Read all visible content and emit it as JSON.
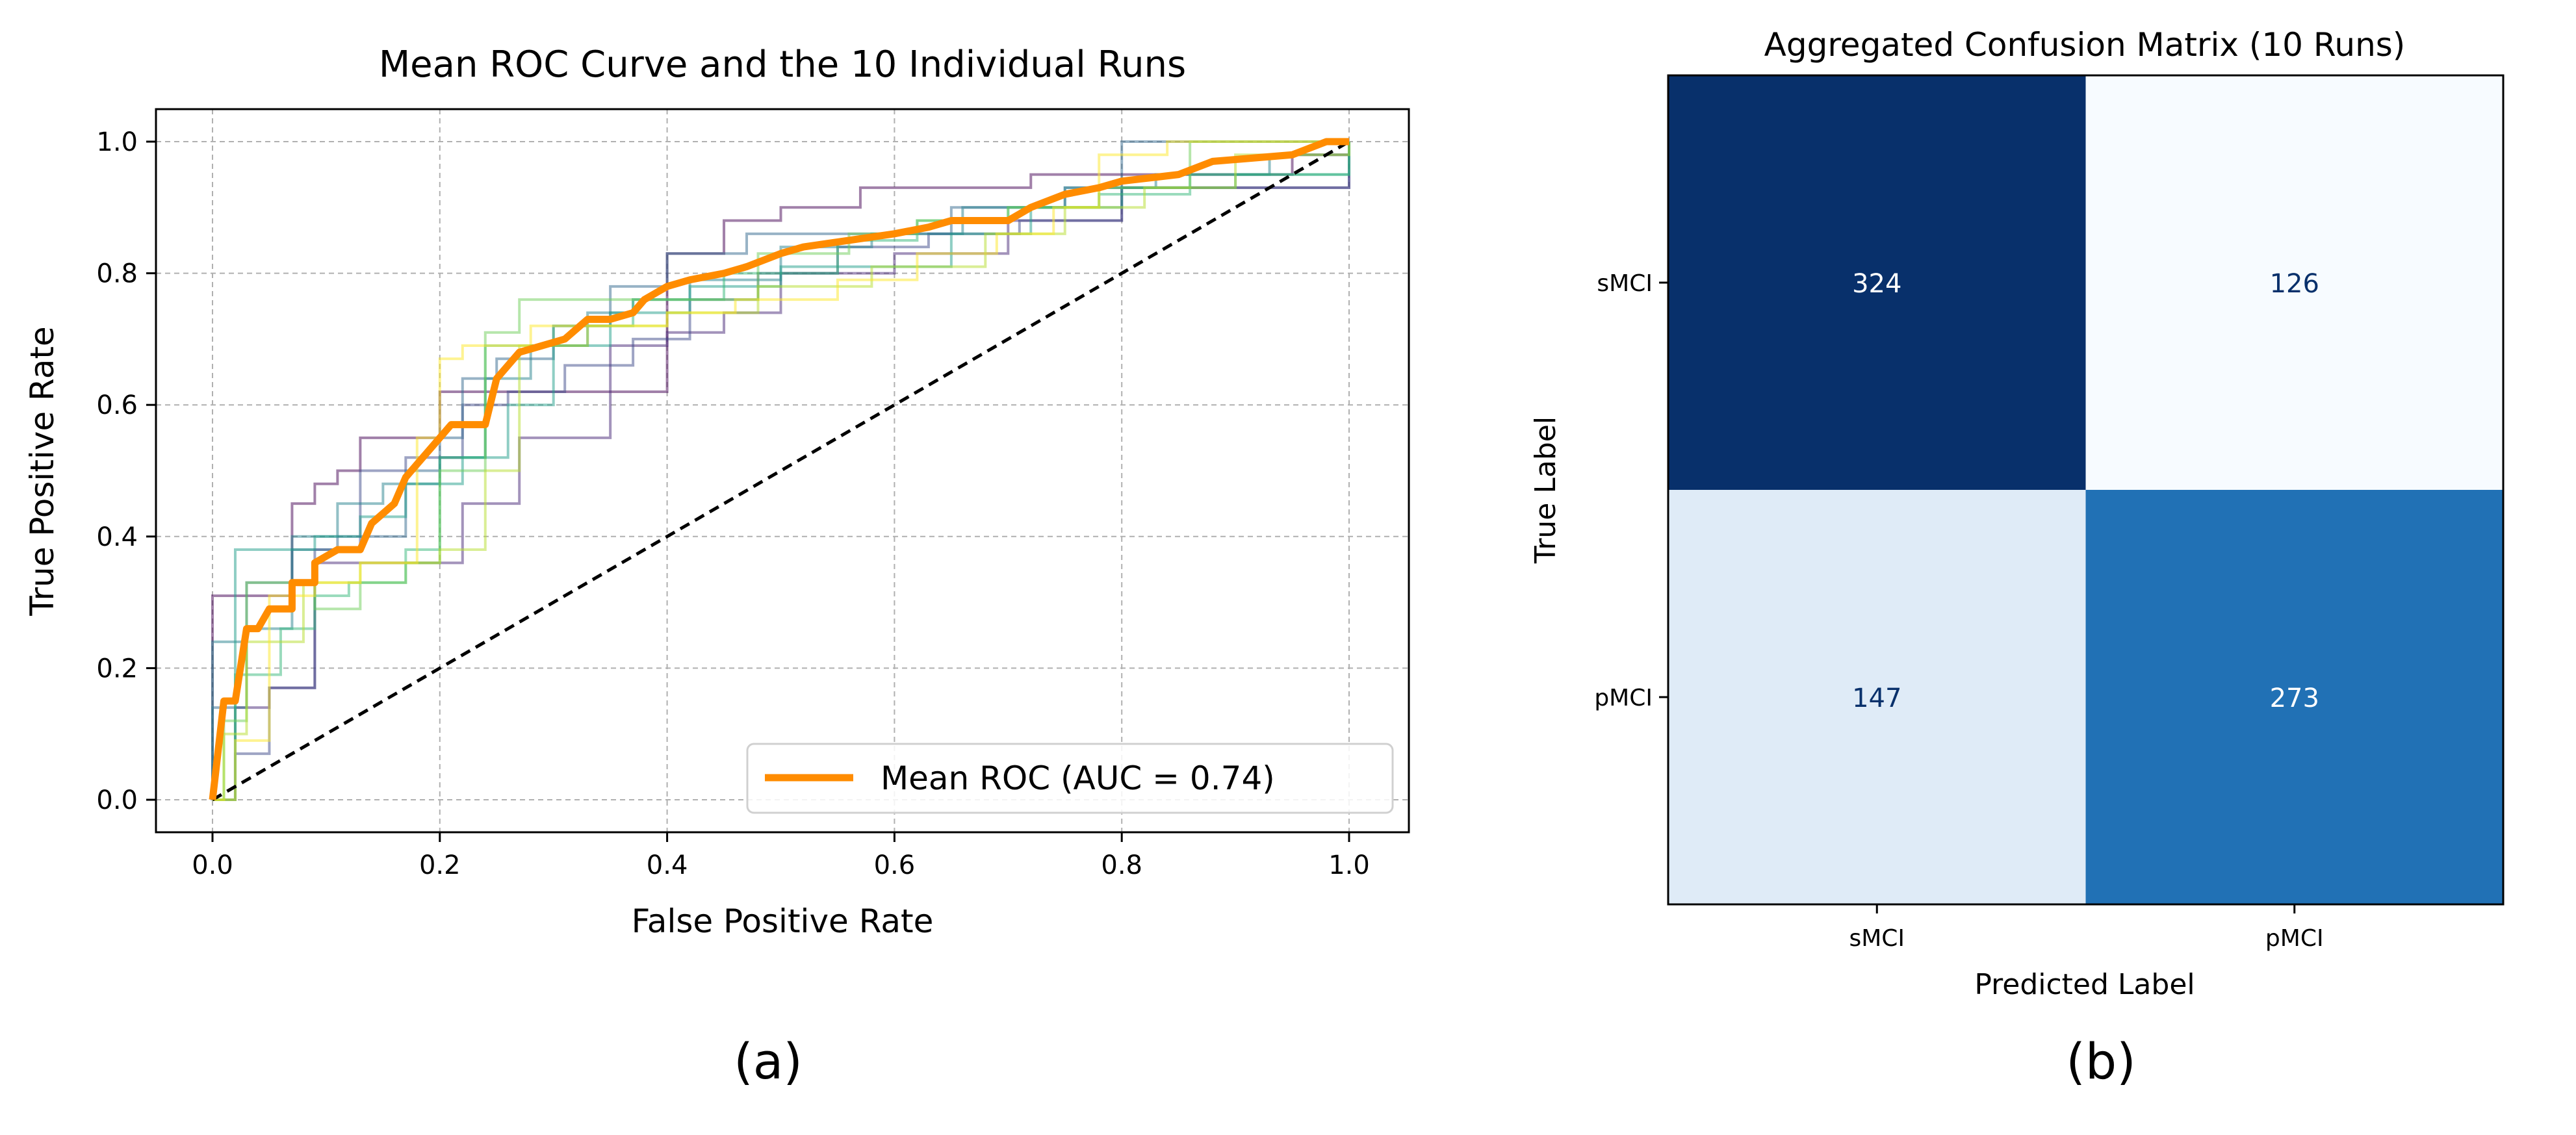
{
  "chart_data": [
    {
      "type": "line",
      "title": "Mean ROC Curve and the 10 Individual Runs",
      "xlabel": "False Positive Rate",
      "ylabel": "True Positive Rate",
      "xlim": [
        -0.05,
        1.05
      ],
      "ylim": [
        -0.05,
        1.05
      ],
      "xticks": [
        "0.0",
        "0.2",
        "0.4",
        "0.6",
        "0.8",
        "1.0"
      ],
      "yticks": [
        "0.0",
        "0.2",
        "0.4",
        "0.6",
        "0.8",
        "1.0"
      ],
      "grid": true,
      "legend_position": "lower-right",
      "panel_label": "(a)",
      "mean_series": {
        "name": "Mean ROC (AUC = 0.74)",
        "color": "#ff8c00",
        "x": [
          0,
          0.01,
          0.02,
          0.03,
          0.04,
          0.05,
          0.07,
          0.07,
          0.09,
          0.09,
          0.11,
          0.13,
          0.14,
          0.16,
          0.17,
          0.19,
          0.21,
          0.24,
          0.25,
          0.27,
          0.29,
          0.31,
          0.33,
          0.35,
          0.37,
          0.38,
          0.4,
          0.42,
          0.45,
          0.47,
          0.5,
          0.52,
          0.56,
          0.6,
          0.63,
          0.65,
          0.7,
          0.72,
          0.75,
          0.78,
          0.8,
          0.85,
          0.88,
          0.95,
          0.98,
          1.0
        ],
        "y": [
          0,
          0.15,
          0.15,
          0.26,
          0.26,
          0.29,
          0.29,
          0.33,
          0.33,
          0.36,
          0.38,
          0.38,
          0.42,
          0.45,
          0.49,
          0.53,
          0.57,
          0.57,
          0.64,
          0.68,
          0.69,
          0.7,
          0.73,
          0.73,
          0.74,
          0.76,
          0.78,
          0.79,
          0.8,
          0.81,
          0.83,
          0.84,
          0.85,
          0.86,
          0.87,
          0.88,
          0.88,
          0.9,
          0.92,
          0.93,
          0.94,
          0.95,
          0.97,
          0.98,
          1.0,
          1.0
        ]
      },
      "run_series": [
        {
          "color": "#440154",
          "x": [
            0,
            0,
            0.02,
            0.07,
            0.09,
            0.11,
            0.13,
            0.18,
            0.2,
            0.4,
            0.45,
            0.5,
            0.57,
            0.65,
            0.72,
            0.8,
            0.88,
            0.95,
            1.0
          ],
          "y": [
            0,
            0.31,
            0.31,
            0.45,
            0.48,
            0.5,
            0.55,
            0.55,
            0.62,
            0.83,
            0.88,
            0.9,
            0.93,
            0.93,
            0.95,
            0.95,
            0.95,
            0.98,
            1.0
          ]
        },
        {
          "color": "#482878",
          "x": [
            0,
            0.02,
            0.05,
            0.09,
            0.2,
            0.22,
            0.27,
            0.35,
            0.4,
            0.45,
            0.5,
            0.6,
            0.7,
            0.8,
            0.9,
            1.0
          ],
          "y": [
            0,
            0.14,
            0.17,
            0.36,
            0.36,
            0.45,
            0.55,
            0.69,
            0.71,
            0.74,
            0.8,
            0.83,
            0.88,
            0.93,
            0.93,
            1.0
          ]
        },
        {
          "color": "#3e4989",
          "x": [
            0,
            0.02,
            0.05,
            0.09,
            0.13,
            0.17,
            0.22,
            0.26,
            0.31,
            0.37,
            0.42,
            0.48,
            0.55,
            0.63,
            0.71,
            0.8,
            0.95,
            1.0
          ],
          "y": [
            0,
            0.07,
            0.17,
            0.38,
            0.5,
            0.52,
            0.6,
            0.62,
            0.66,
            0.7,
            0.76,
            0.8,
            0.84,
            0.86,
            0.88,
            0.93,
            0.93,
            1.0
          ]
        },
        {
          "color": "#31688e",
          "x": [
            0,
            0,
            0.03,
            0.07,
            0.11,
            0.17,
            0.2,
            0.22,
            0.25,
            0.3,
            0.35,
            0.4,
            0.47,
            0.55,
            0.65,
            0.75,
            0.8,
            0.9,
            1.0
          ],
          "y": [
            0,
            0.14,
            0.33,
            0.38,
            0.4,
            0.5,
            0.55,
            0.64,
            0.67,
            0.72,
            0.78,
            0.83,
            0.86,
            0.86,
            0.9,
            0.93,
            1.0,
            1.0,
            1.0
          ]
        },
        {
          "color": "#26828e",
          "x": [
            0,
            0,
            0.03,
            0.07,
            0.11,
            0.15,
            0.2,
            0.24,
            0.28,
            0.33,
            0.37,
            0.42,
            0.5,
            0.58,
            0.66,
            0.75,
            0.83,
            0.93,
            1.0
          ],
          "y": [
            0,
            0.24,
            0.26,
            0.4,
            0.45,
            0.48,
            0.52,
            0.64,
            0.69,
            0.74,
            0.76,
            0.79,
            0.84,
            0.86,
            0.9,
            0.93,
            0.95,
            0.98,
            1.0
          ]
        },
        {
          "color": "#1f9e89",
          "x": [
            0,
            0.02,
            0.05,
            0.09,
            0.13,
            0.17,
            0.22,
            0.26,
            0.3,
            0.35,
            0.42,
            0.5,
            0.55,
            0.65,
            0.72,
            0.8,
            0.9,
            1.0
          ],
          "y": [
            0,
            0.38,
            0.38,
            0.4,
            0.43,
            0.48,
            0.52,
            0.6,
            0.69,
            0.74,
            0.78,
            0.81,
            0.81,
            0.86,
            0.9,
            0.93,
            0.95,
            1.0
          ]
        },
        {
          "color": "#35b779",
          "x": [
            0,
            0.02,
            0.06,
            0.09,
            0.12,
            0.17,
            0.2,
            0.24,
            0.3,
            0.37,
            0.45,
            0.55,
            0.62,
            0.7,
            0.78,
            0.86,
            1.0
          ],
          "y": [
            0,
            0.19,
            0.26,
            0.31,
            0.33,
            0.38,
            0.52,
            0.69,
            0.72,
            0.76,
            0.8,
            0.85,
            0.88,
            0.9,
            0.92,
            0.95,
            1.0
          ]
        },
        {
          "color": "#6ece58",
          "x": [
            0,
            0.01,
            0.03,
            0.07,
            0.09,
            0.13,
            0.17,
            0.2,
            0.24,
            0.27,
            0.32,
            0.4,
            0.48,
            0.56,
            0.62,
            0.7,
            0.78,
            0.86,
            1.0
          ],
          "y": [
            0,
            0.12,
            0.33,
            0.33,
            0.29,
            0.33,
            0.36,
            0.5,
            0.71,
            0.76,
            0.76,
            0.76,
            0.83,
            0.86,
            0.88,
            0.9,
            0.93,
            1.0,
            1.0
          ]
        },
        {
          "color": "#b5de2b",
          "x": [
            0,
            0.01,
            0.03,
            0.08,
            0.13,
            0.2,
            0.24,
            0.27,
            0.33,
            0.4,
            0.48,
            0.58,
            0.68,
            0.75,
            0.82,
            0.9,
            1.0
          ],
          "y": [
            0,
            0.1,
            0.24,
            0.33,
            0.36,
            0.38,
            0.5,
            0.69,
            0.72,
            0.74,
            0.78,
            0.81,
            0.86,
            0.9,
            0.93,
            0.98,
            1.0
          ]
        },
        {
          "color": "#fde725",
          "x": [
            0,
            0.02,
            0.05,
            0.09,
            0.13,
            0.18,
            0.2,
            0.22,
            0.28,
            0.33,
            0.4,
            0.46,
            0.55,
            0.62,
            0.69,
            0.74,
            0.78,
            0.84,
            1.0
          ],
          "y": [
            0,
            0.09,
            0.31,
            0.33,
            0.36,
            0.55,
            0.67,
            0.69,
            0.72,
            0.72,
            0.74,
            0.76,
            0.79,
            0.83,
            0.86,
            0.9,
            0.98,
            1.0,
            1.0
          ]
        }
      ],
      "chance_line": {
        "x": [
          0,
          1
        ],
        "y": [
          0,
          1
        ],
        "color": "#000000",
        "style": "dashed"
      }
    },
    {
      "type": "heatmap",
      "title": "Aggregated Confusion Matrix (10 Runs)",
      "xlabel": "Predicted Label",
      "ylabel": "True Label",
      "x_categories": [
        "sMCI",
        "pMCI"
      ],
      "y_categories": [
        "sMCI",
        "pMCI"
      ],
      "values": [
        [
          324,
          126
        ],
        [
          147,
          273
        ]
      ],
      "colormap": "Blues",
      "cell_colors": [
        [
          "#08306b",
          "#f7fbff"
        ],
        [
          "#dfebf7",
          "#2171b5"
        ]
      ],
      "text_colors": [
        [
          "#ffffff",
          "#08306b"
        ],
        [
          "#08306b",
          "#ffffff"
        ]
      ],
      "panel_label": "(b)"
    }
  ]
}
